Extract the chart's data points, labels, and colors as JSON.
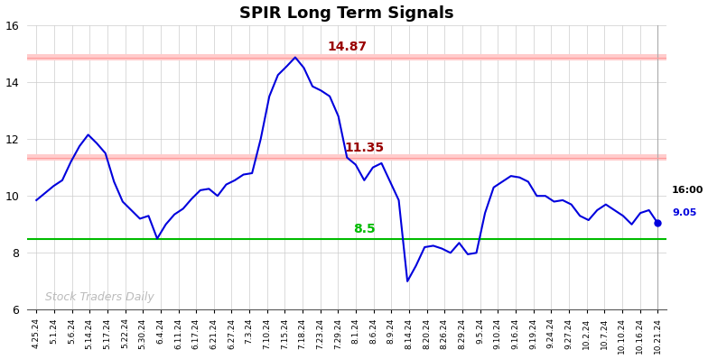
{
  "title": "SPIR Long Term Signals",
  "xlabels": [
    "4.25.24",
    "5.1.24",
    "5.6.24",
    "5.14.24",
    "5.17.24",
    "5.22.24",
    "5.30.24",
    "6.4.24",
    "6.11.24",
    "6.17.24",
    "6.21.24",
    "6.27.24",
    "7.3.24",
    "7.10.24",
    "7.15.24",
    "7.18.24",
    "7.23.24",
    "7.29.24",
    "8.1.24",
    "8.6.24",
    "8.9.24",
    "8.14.24",
    "8.20.24",
    "8.26.24",
    "8.29.24",
    "9.5.24",
    "9.10.24",
    "9.16.24",
    "9.19.24",
    "9.24.24",
    "9.27.24",
    "10.2.24",
    "10.7.24",
    "10.10.24",
    "10.16.24",
    "10.21.24"
  ],
  "yvalues": [
    9.85,
    10.1,
    10.35,
    10.55,
    11.2,
    11.75,
    12.15,
    11.85,
    11.5,
    10.5,
    9.8,
    9.5,
    9.2,
    9.3,
    8.5,
    9.0,
    9.35,
    9.55,
    9.9,
    10.2,
    10.25,
    10.0,
    10.4,
    10.55,
    10.75,
    10.8,
    12.0,
    13.5,
    14.25,
    14.55,
    14.87,
    14.5,
    13.85,
    13.7,
    13.5,
    12.8,
    11.35,
    11.1,
    10.55,
    11.0,
    11.15,
    10.5,
    9.85,
    7.0,
    7.55,
    8.2,
    8.25,
    8.15,
    8.0,
    8.35,
    7.95,
    8.0,
    9.4,
    10.3,
    10.5,
    10.7,
    10.65,
    10.5,
    10.0,
    10.0,
    9.8,
    9.85,
    9.7,
    9.3,
    9.15,
    9.5,
    9.7,
    9.5,
    9.3,
    9.0,
    9.4,
    9.5,
    9.05
  ],
  "line_color": "#0000dd",
  "hline_green": 8.5,
  "hline_red1": 14.87,
  "hline_red2": 11.35,
  "hline_green_color": "#00bb00",
  "hline_red_color": "#990000",
  "hline_red_band_color": "#ffcccc",
  "annotation_14_87": "14.87",
  "annotation_11_35": "11.35",
  "annotation_8_5": "8.5",
  "annotation_last": "9.05",
  "annotation_time": "16:00",
  "watermark": "Stock Traders Daily",
  "ylim": [
    6,
    16
  ],
  "yticks": [
    6,
    8,
    10,
    12,
    14,
    16
  ],
  "background_color": "#ffffff",
  "grid_color": "#cccccc",
  "n_xlabels": 36
}
